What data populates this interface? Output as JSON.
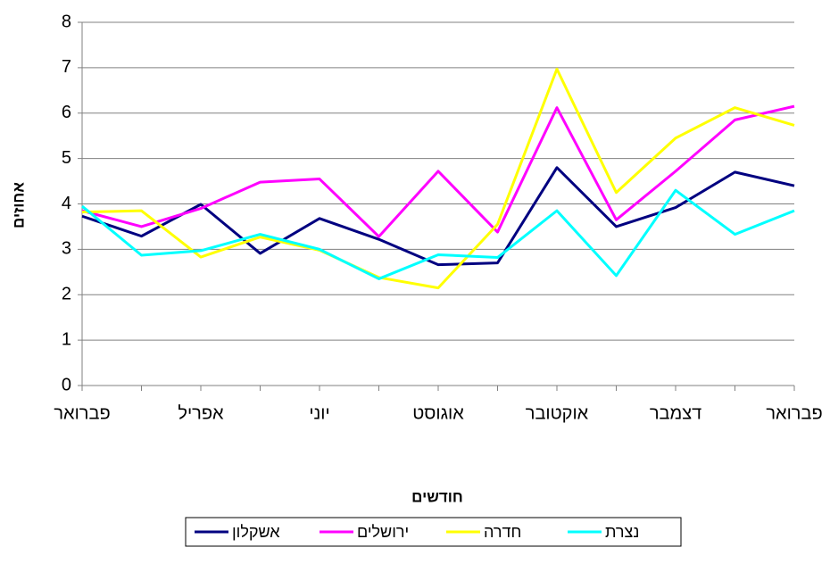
{
  "chart_data": {
    "type": "line",
    "x_label": "חודשים",
    "y_label": "אחוזים",
    "categories": [
      "פברואר",
      null,
      "אפריל",
      null,
      "יוני",
      null,
      "אוגוסט",
      null,
      "אוקטובר",
      null,
      "דצמבר",
      null,
      "פברואר"
    ],
    "series": [
      {
        "name": "אשקלון",
        "color": "#000080",
        "values": [
          3.73,
          3.29,
          3.99,
          2.91,
          3.68,
          3.22,
          2.66,
          2.7,
          4.8,
          3.5,
          3.92,
          4.7,
          4.4
        ]
      },
      {
        "name": "ירושלים",
        "color": "#ff00ff",
        "values": [
          3.85,
          3.5,
          3.9,
          4.48,
          4.55,
          3.28,
          4.72,
          3.38,
          6.12,
          3.65,
          4.72,
          5.85,
          6.15
        ]
      },
      {
        "name": "חדרה",
        "color": "#ffff00",
        "values": [
          3.82,
          3.85,
          2.83,
          3.27,
          2.98,
          2.38,
          2.15,
          3.55,
          6.97,
          4.25,
          5.45,
          6.12,
          5.73
        ]
      },
      {
        "name": "נצרת",
        "color": "#00ffff",
        "values": [
          3.95,
          2.87,
          2.97,
          3.33,
          3.0,
          2.35,
          2.88,
          2.82,
          3.85,
          2.42,
          4.3,
          3.33,
          3.85
        ]
      }
    ],
    "ylim": [
      0,
      8
    ],
    "yticks": [
      0,
      1,
      2,
      3,
      4,
      5,
      6,
      7,
      8
    ],
    "grid": true,
    "legend": "bottom"
  }
}
